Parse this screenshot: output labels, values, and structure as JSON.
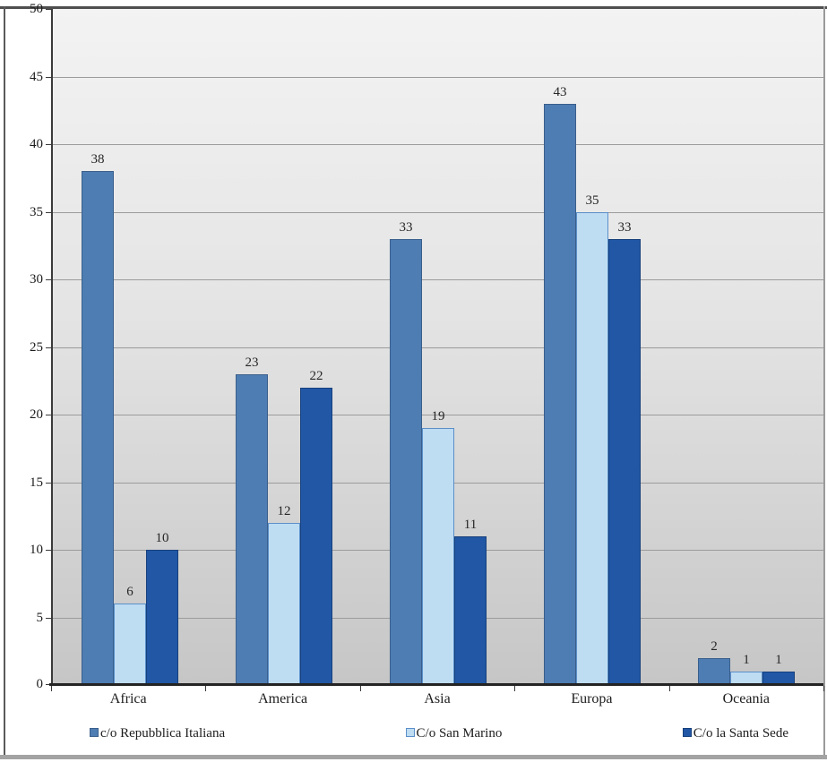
{
  "chart_data": {
    "type": "bar",
    "title": "",
    "xlabel": "",
    "ylabel": "",
    "categories": [
      "Africa",
      "America",
      "Asia",
      "Europa",
      "Oceania"
    ],
    "series": [
      {
        "name": "c/o Repubblica Italiana",
        "color": "#4e7db3",
        "border_color": "#3a5f8c",
        "values": [
          38,
          23,
          33,
          43,
          2
        ]
      },
      {
        "name": "C/o San Marino",
        "color": "#bedcf2",
        "border_color": "#5b8fc9",
        "values": [
          6,
          12,
          19,
          35,
          1
        ]
      },
      {
        "name": "C/o la Santa Sede",
        "color": "#2157a5",
        "border_color": "#16407c",
        "values": [
          10,
          22,
          11,
          33,
          1
        ]
      }
    ],
    "ylim": [
      0,
      50
    ],
    "ytick_step": 5,
    "yticks": [
      "0",
      "5",
      "10",
      "15",
      "20",
      "25",
      "30",
      "35",
      "40",
      "45",
      "50"
    ],
    "grid": true,
    "legend_position": "bottom",
    "plot_background": "gray vertical gradient",
    "value_labels_shown": true
  }
}
